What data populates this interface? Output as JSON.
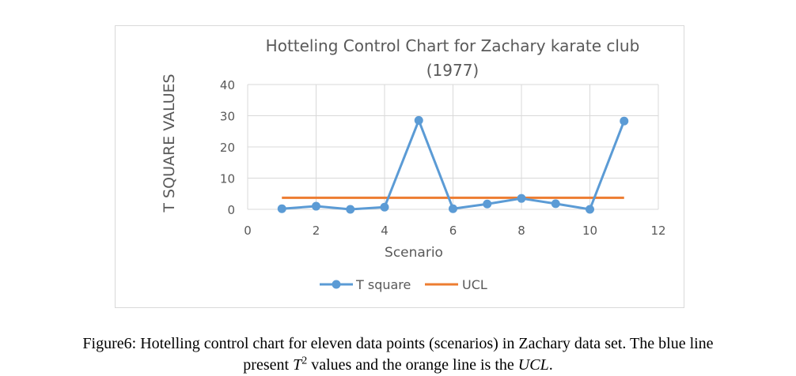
{
  "chart_data": {
    "type": "line",
    "title_line1": "Hotteling Control Chart for Zachary karate club",
    "title_line2": "(1977)",
    "xlabel": "Scenario",
    "ylabel": "T SQUARE VALUES",
    "xlim": [
      0,
      12
    ],
    "ylim": [
      0,
      40
    ],
    "x_ticks": [
      0,
      2,
      4,
      6,
      8,
      10,
      12
    ],
    "y_ticks": [
      0,
      10,
      20,
      30,
      40
    ],
    "grid": true,
    "legend_position": "bottom",
    "series": [
      {
        "name": "T square",
        "color": "#5b9bd5",
        "markers": true,
        "x": [
          1,
          2,
          3,
          4,
          5,
          6,
          7,
          8,
          9,
          10,
          11
        ],
        "y": [
          0.2,
          1.0,
          0.0,
          0.7,
          28.5,
          0.2,
          1.7,
          3.5,
          1.8,
          0.0,
          28.3
        ]
      },
      {
        "name": "UCL",
        "color": "#ed7d31",
        "markers": false,
        "x": [
          1,
          11
        ],
        "y": [
          3.7,
          3.7
        ]
      }
    ]
  },
  "caption": {
    "line1": "Figure6: Hotelling control chart for eleven data points (scenarios) in Zachary data set. The blue line",
    "line2_start": "present ",
    "t_symbol": "T",
    "t_exponent": "2",
    "line2_middle": " values and the orange line is the ",
    "ucl_italic": "UCL",
    "line2_end": "."
  }
}
